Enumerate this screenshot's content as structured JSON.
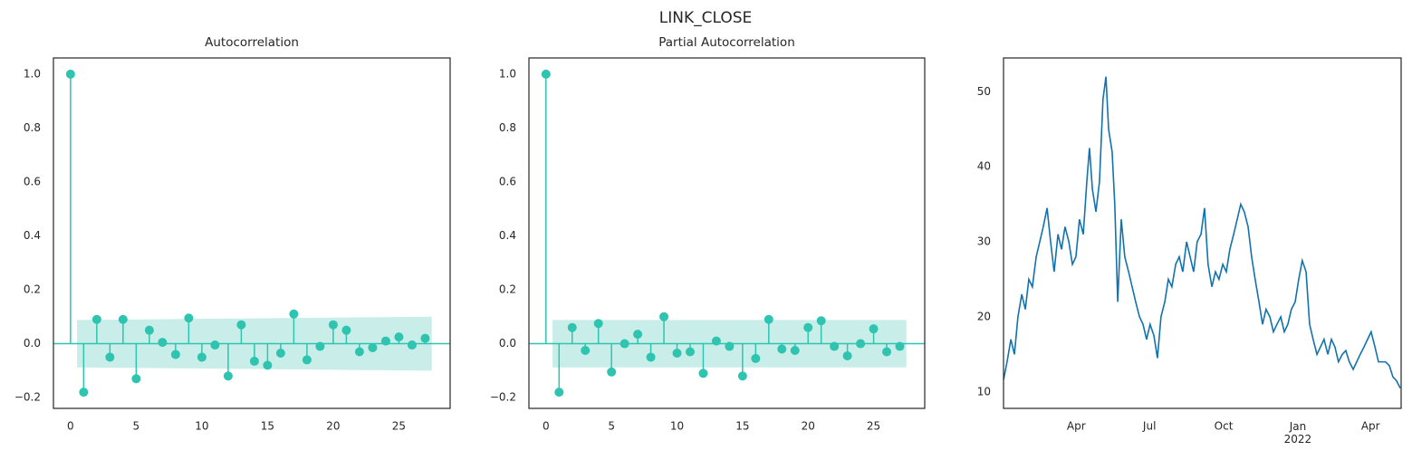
{
  "chart_data": [
    {
      "type": "stem",
      "title": "Autocorrelation",
      "color": "#2ec4b0",
      "band_color": "#c9eee9",
      "x": [
        0,
        1,
        2,
        3,
        4,
        5,
        6,
        7,
        8,
        9,
        10,
        11,
        12,
        13,
        14,
        15,
        16,
        17,
        18,
        19,
        20,
        21,
        22,
        23,
        24,
        25,
        26,
        27
      ],
      "values": [
        1.0,
        -0.18,
        0.09,
        -0.05,
        0.09,
        -0.13,
        0.05,
        0.005,
        -0.04,
        0.095,
        -0.05,
        -0.005,
        -0.12,
        0.07,
        -0.065,
        -0.08,
        -0.035,
        0.11,
        -0.06,
        -0.01,
        0.07,
        0.05,
        -0.03,
        -0.015,
        0.01,
        0.025,
        -0.005,
        0.02
      ],
      "band": {
        "x": [
          0.5,
          27.5
        ],
        "upper": [
          0.088,
          0.1
        ],
        "lower": [
          -0.088,
          -0.1
        ]
      },
      "xlim": [
        -1.3,
        28.9
      ],
      "xticks": [
        0,
        5,
        10,
        15,
        20,
        25
      ],
      "ylim": [
        -0.24,
        1.06
      ],
      "yticks": [
        {
          "value": -0.2,
          "label": "−0.2"
        },
        {
          "value": 0,
          "label": "0.0"
        },
        0.2,
        0.4,
        0.6,
        0.8,
        {
          "value": 1,
          "label": "1.0"
        }
      ]
    },
    {
      "type": "stem",
      "title": "Partial Autocorrelation",
      "color": "#2ec4b0",
      "band_color": "#c9eee9",
      "x": [
        0,
        1,
        2,
        3,
        4,
        5,
        6,
        7,
        8,
        9,
        10,
        11,
        12,
        13,
        14,
        15,
        16,
        17,
        18,
        19,
        20,
        21,
        22,
        23,
        24,
        25,
        26,
        27
      ],
      "values": [
        1.0,
        -0.18,
        0.06,
        -0.025,
        0.075,
        -0.105,
        0.0,
        0.035,
        -0.05,
        0.1,
        -0.035,
        -0.03,
        -0.11,
        0.01,
        -0.01,
        -0.12,
        -0.055,
        0.09,
        -0.02,
        -0.025,
        0.06,
        0.085,
        -0.01,
        -0.045,
        0.0,
        0.055,
        -0.03,
        -0.01
      ],
      "band": {
        "x": [
          0.5,
          27.5
        ],
        "upper": [
          0.088,
          0.088
        ],
        "lower": [
          -0.088,
          -0.088
        ]
      },
      "xlim": [
        -1.3,
        28.9
      ],
      "xticks": [
        0,
        5,
        10,
        15,
        20,
        25
      ],
      "ylim": [
        -0.24,
        1.06
      ],
      "yticks": [
        {
          "value": -0.2,
          "label": "−0.2"
        },
        {
          "value": 0,
          "label": "0.0"
        },
        0.2,
        0.4,
        0.6,
        0.8,
        {
          "value": 1,
          "label": "1.0"
        }
      ]
    },
    {
      "type": "line",
      "suptitle": "LINK_CLOSE",
      "color": "#1172b0",
      "x": [
        2021.0,
        2021.012,
        2021.025,
        2021.037,
        2021.049,
        2021.062,
        2021.074,
        2021.086,
        2021.098,
        2021.111,
        2021.123,
        2021.135,
        2021.148,
        2021.16,
        2021.172,
        2021.185,
        2021.197,
        2021.209,
        2021.222,
        2021.234,
        2021.246,
        2021.258,
        2021.271,
        2021.283,
        2021.292,
        2021.302,
        2021.314,
        2021.326,
        2021.338,
        2021.348,
        2021.357,
        2021.369,
        2021.378,
        2021.388,
        2021.4,
        2021.412,
        2021.425,
        2021.437,
        2021.449,
        2021.462,
        2021.474,
        2021.486,
        2021.498,
        2021.511,
        2021.523,
        2021.535,
        2021.548,
        2021.56,
        2021.572,
        2021.585,
        2021.597,
        2021.609,
        2021.622,
        2021.634,
        2021.646,
        2021.658,
        2021.671,
        2021.683,
        2021.695,
        2021.708,
        2021.72,
        2021.732,
        2021.745,
        2021.757,
        2021.769,
        2021.782,
        2021.794,
        2021.806,
        2021.818,
        2021.831,
        2021.843,
        2021.855,
        2021.868,
        2021.88,
        2021.892,
        2021.905,
        2021.917,
        2021.929,
        2021.942,
        2021.954,
        2021.966,
        2021.978,
        2021.991,
        2022.003,
        2022.015,
        2022.028,
        2022.04,
        2022.052,
        2022.065,
        2022.077,
        2022.089,
        2022.102,
        2022.114,
        2022.126,
        2022.138,
        2022.151,
        2022.163,
        2022.175,
        2022.188,
        2022.2,
        2022.212,
        2022.225,
        2022.237,
        2022.249,
        2022.262,
        2022.274,
        2022.286,
        2022.298,
        2022.311,
        2022.323,
        2022.335,
        2022.348
      ],
      "values": [
        11.6,
        14,
        17,
        15,
        20,
        23,
        21,
        25,
        24,
        28,
        30,
        32,
        34.5,
        30,
        26,
        31,
        29,
        32,
        30,
        27,
        28,
        33,
        31,
        38,
        42.5,
        37,
        34,
        38,
        49,
        52,
        45,
        42,
        35,
        22,
        33,
        28,
        26,
        24,
        22,
        20,
        19,
        17,
        19,
        17.5,
        14.5,
        20,
        22,
        25,
        24,
        27,
        28,
        26,
        30,
        28,
        26,
        30,
        31,
        34.5,
        27,
        24,
        26,
        25,
        27,
        26,
        29,
        31,
        33,
        35,
        34,
        32,
        28,
        25,
        22,
        19,
        21,
        20,
        18,
        19,
        20,
        18,
        19,
        21,
        22,
        25,
        27.5,
        26,
        19,
        17,
        15,
        16,
        17,
        15,
        17,
        16,
        14,
        15,
        15.5,
        14,
        13,
        14,
        15,
        16,
        17,
        18,
        16,
        14,
        14,
        14,
        13.5,
        12,
        11.5,
        10.5
      ],
      "xlim": [
        2021.0,
        2022.351
      ],
      "xticks": [
        {
          "value": 2021.247,
          "label": "Apr"
        },
        {
          "value": 2021.496,
          "label": "Jul"
        },
        {
          "value": 2021.748,
          "label": "Oct"
        },
        {
          "value": 2022.0,
          "label": "Jan\n2022"
        },
        {
          "value": 2022.247,
          "label": "Apr"
        }
      ],
      "ylim": [
        7.8,
        54.5
      ],
      "yticks": [
        10,
        20,
        30,
        40,
        50
      ]
    }
  ]
}
